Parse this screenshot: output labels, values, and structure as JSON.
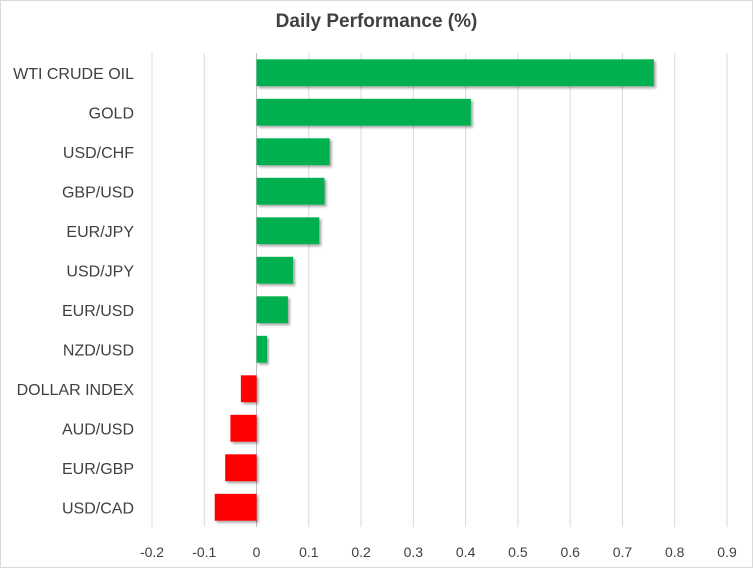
{
  "chart_data": {
    "type": "bar",
    "orientation": "horizontal",
    "title": "Daily Performance  (%)",
    "categories": [
      "WTI CRUDE OIL",
      "GOLD",
      "USD/CHF",
      "GBP/USD",
      "EUR/JPY",
      "USD/JPY",
      "EUR/USD",
      "NZD/USD",
      "DOLLAR INDEX",
      "AUD/USD",
      "EUR/GBP",
      "USD/CAD"
    ],
    "values": [
      0.76,
      0.41,
      0.14,
      0.13,
      0.12,
      0.07,
      0.06,
      0.02,
      -0.03,
      -0.05,
      -0.06,
      -0.08
    ],
    "xlim": [
      -0.2,
      0.9
    ],
    "xticks": [
      "-0.2",
      "-0.1",
      "0",
      "0.1",
      "0.2",
      "0.3",
      "0.4",
      "0.5",
      "0.6",
      "0.7",
      "0.8",
      "0.9"
    ],
    "grid": true,
    "colors": {
      "positive": "#00b050",
      "negative": "#ff0000"
    }
  }
}
